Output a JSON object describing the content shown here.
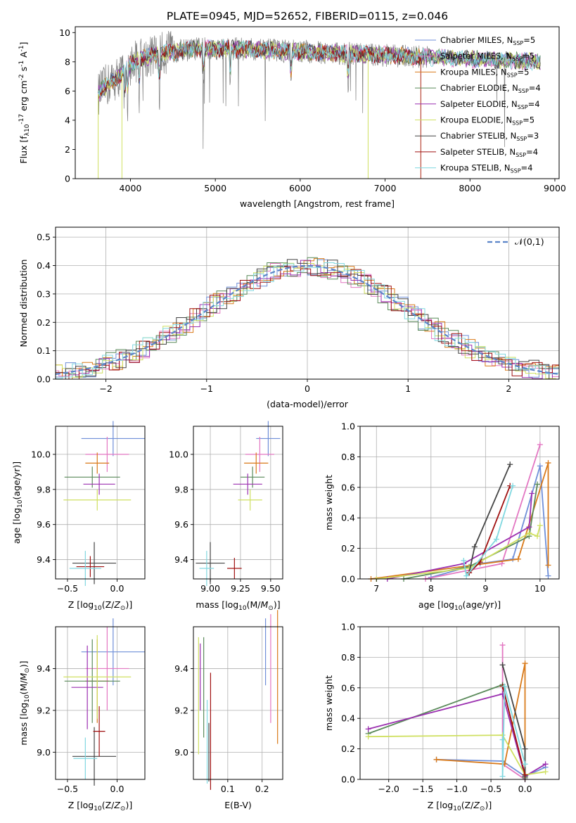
{
  "figure": {
    "title": "PLATE=0945, MJD=52652, FIBERID=0115, z=0.046",
    "colors": {
      "chabrier_miles": "#6f8fd8",
      "salpeter_miles": "#e377c2",
      "kroupa_miles": "#d97a1a",
      "chabrier_elodie": "#5a8a5a",
      "salpeter_elodie": "#9b30b0",
      "kroupa_elodie": "#cfe060",
      "chabrier_stelib": "#444444",
      "salpeter_stelib": "#a01010",
      "kroupa_stelib": "#80d8e0",
      "data": "#808080",
      "normal": "#5b84c8"
    }
  },
  "chart_data": [
    {
      "id": "spectrum",
      "type": "line",
      "xlabel": "wavelength [Angstrom, rest frame]",
      "ylabel": "Flux [f_λ10^{-17} erg cm^{-2} s^{-1} A^{-1}]",
      "xlim": [
        3350,
        9050
      ],
      "ylim": [
        0,
        10.4
      ],
      "xticks": [
        "4000",
        "5000",
        "6000",
        "7000",
        "8000",
        "9000"
      ],
      "yticks": [
        "0",
        "2",
        "4",
        "6",
        "8",
        "10"
      ],
      "grid": false,
      "legend_position": "right",
      "legend": [
        "Chabrier MILES, N_SSP=5",
        "Salpeter MILES, N_SSP=5",
        "Kroupa MILES, N_SSP=5",
        "Chabrier ELODIE, N_SSP=4",
        "Salpeter ELODIE, N_SSP=4",
        "Kroupa ELODIE, N_SSP=5",
        "Chabrier STELIB, N_SSP=3",
        "Salpeter STELIB, N_SSP=4",
        "Kroupa STELIB, N_SSP=4"
      ],
      "continuum": {
        "wavelength": [
          3620,
          3700,
          3800,
          3900,
          4000,
          4100,
          4300,
          4500,
          4800,
          5200,
          5600,
          6000,
          6400,
          6800,
          7200,
          7600,
          8000,
          8400,
          8800
        ],
        "flux": [
          5.8,
          6.3,
          6.7,
          7.2,
          7.8,
          8.2,
          8.5,
          8.7,
          8.9,
          8.9,
          8.8,
          8.7,
          8.6,
          8.5,
          8.4,
          8.3,
          8.2,
          8.1,
          8.0
        ]
      }
    },
    {
      "id": "residuals",
      "type": "line",
      "xlabel": "(data-model)/error",
      "ylabel": "Normed distribution",
      "xlim": [
        -2.5,
        2.5
      ],
      "ylim": [
        0,
        0.535
      ],
      "xticks": [
        "−2",
        "−1",
        "0",
        "1",
        "2"
      ],
      "yticks": [
        "0.0",
        "0.1",
        "0.2",
        "0.3",
        "0.4",
        "0.5"
      ],
      "grid": true,
      "legend_position": "top-right",
      "normal_label": "𝒩(0,1)"
    },
    {
      "id": "age_vs_z",
      "type": "scatter",
      "xlabel": "Z [log10(Z/Z⊙)]",
      "ylabel": "age  [log10(age/yr)]",
      "xlim": [
        -0.62,
        0.28
      ],
      "ylim": [
        9.29,
        10.16
      ],
      "xticks": [
        "−0.5",
        "0.0"
      ],
      "yticks": [
        "9.4",
        "9.6",
        "9.8",
        "10.0"
      ],
      "grid": true,
      "points": [
        {
          "x": -0.04,
          "y": 10.09,
          "xerr": 0.32,
          "yerr": 0.05
        },
        {
          "x": -0.1,
          "y": 10.0,
          "xerr": 0.22,
          "yerr": 0.05
        },
        {
          "x": -0.2,
          "y": 9.95,
          "xerr": 0.12,
          "yerr": 0.03
        },
        {
          "x": -0.25,
          "y": 9.87,
          "xerr": 0.28,
          "yerr": 0.03
        },
        {
          "x": -0.18,
          "y": 9.83,
          "xerr": 0.16,
          "yerr": 0.03
        },
        {
          "x": -0.2,
          "y": 9.74,
          "xerr": 0.34,
          "yerr": 0.03
        },
        {
          "x": -0.23,
          "y": 9.38,
          "xerr": 0.22,
          "yerr": 0.06
        },
        {
          "x": -0.27,
          "y": 9.36,
          "xerr": 0.14,
          "yerr": 0.03
        },
        {
          "x": -0.32,
          "y": 9.35,
          "xerr": 0.16,
          "yerr": 0.05
        }
      ]
    },
    {
      "id": "age_vs_mass",
      "type": "scatter",
      "xlabel": "mass [log10(M/M⊙)]",
      "ylabel": "",
      "xlim": [
        8.86,
        9.6
      ],
      "ylim": [
        9.29,
        10.16
      ],
      "xticks": [
        "9.00",
        "9.25",
        "9.50"
      ],
      "yticks": [
        "9.4",
        "9.6",
        "9.8",
        "10.0"
      ],
      "grid": true,
      "points": [
        {
          "x": 9.48,
          "y": 10.09,
          "xerr": 0.1,
          "yerr": 0.05
        },
        {
          "x": 9.41,
          "y": 10.0,
          "xerr": 0.12,
          "yerr": 0.05
        },
        {
          "x": 9.38,
          "y": 9.95,
          "xerr": 0.1,
          "yerr": 0.03
        },
        {
          "x": 9.35,
          "y": 9.87,
          "xerr": 0.1,
          "yerr": 0.03
        },
        {
          "x": 9.31,
          "y": 9.83,
          "xerr": 0.12,
          "yerr": 0.03
        },
        {
          "x": 9.33,
          "y": 9.74,
          "xerr": 0.1,
          "yerr": 0.03
        },
        {
          "x": 9.0,
          "y": 9.38,
          "xerr": 0.12,
          "yerr": 0.06
        },
        {
          "x": 9.2,
          "y": 9.35,
          "xerr": 0.06,
          "yerr": 0.03
        },
        {
          "x": 8.97,
          "y": 9.35,
          "xerr": 0.06,
          "yerr": 0.05
        }
      ]
    },
    {
      "id": "weight_vs_age",
      "type": "line",
      "xlabel": "age  [log10(age/yr)]",
      "ylabel": "mass weight",
      "xlim": [
        6.7,
        10.35
      ],
      "ylim": [
        0,
        1
      ],
      "xticks": [
        "7",
        "8",
        "9",
        "10"
      ],
      "yticks": [
        "0.0",
        "0.2",
        "0.4",
        "0.6",
        "0.8",
        "1.0"
      ],
      "grid": true,
      "series": [
        {
          "color": "chabrier_miles",
          "x": [
            8.0,
            8.9,
            9.5,
            10.0,
            10.15
          ],
          "y": [
            0.01,
            0.1,
            0.13,
            0.74,
            0.02
          ]
        },
        {
          "color": "salpeter_miles",
          "x": [
            7.9,
            9.3,
            10.0
          ],
          "y": [
            0.0,
            0.1,
            0.88
          ]
        },
        {
          "color": "kroupa_miles",
          "x": [
            6.9,
            9.6,
            10.15,
            10.15
          ],
          "y": [
            0.0,
            0.13,
            0.76,
            0.09
          ]
        },
        {
          "color": "chabrier_elodie",
          "x": [
            7.5,
            8.7,
            9.8,
            9.95
          ],
          "y": [
            0.0,
            0.08,
            0.28,
            0.62
          ]
        },
        {
          "color": "salpeter_elodie",
          "x": [
            7.2,
            8.6,
            9.8,
            9.85
          ],
          "y": [
            0.0,
            0.1,
            0.34,
            0.56
          ]
        },
        {
          "color": "kroupa_elodie",
          "x": [
            7.0,
            8.7,
            9.8,
            9.95,
            10.0
          ],
          "y": [
            0.0,
            0.07,
            0.3,
            0.28,
            0.35
          ]
        },
        {
          "color": "chabrier_stelib",
          "x": [
            8.7,
            8.8,
            9.45
          ],
          "y": [
            0.04,
            0.21,
            0.75
          ]
        },
        {
          "color": "salpeter_stelib",
          "x": [
            8.7,
            8.9,
            9.45
          ],
          "y": [
            0.04,
            0.11,
            0.61
          ]
        },
        {
          "color": "kroupa_stelib",
          "x": [
            8.6,
            8.65,
            9.2,
            9.5
          ],
          "y": [
            0.12,
            0.02,
            0.26,
            0.61
          ]
        }
      ]
    },
    {
      "id": "mass_vs_z",
      "type": "scatter",
      "xlabel": "Z [log10(Z/Z⊙)]",
      "ylabel": "mass [log10(M/M⊙)]",
      "xlim": [
        -0.62,
        0.28
      ],
      "ylim": [
        8.87,
        9.6
      ],
      "xticks": [
        "−0.5",
        "0.0"
      ],
      "yticks": [
        "9.0",
        "9.2",
        "9.4"
      ],
      "grid": true,
      "points": [
        {
          "x": -0.04,
          "y": 9.48,
          "xerr": 0.32,
          "yerr": 0.08
        },
        {
          "x": -0.1,
          "y": 9.4,
          "xerr": 0.22,
          "yerr": 0.1
        },
        {
          "x": -0.2,
          "y": 9.34,
          "xerr": 0.12,
          "yerr": 0.1
        },
        {
          "x": -0.25,
          "y": 9.34,
          "xerr": 0.28,
          "yerr": 0.1
        },
        {
          "x": -0.3,
          "y": 9.31,
          "xerr": 0.16,
          "yerr": 0.1
        },
        {
          "x": -0.2,
          "y": 9.36,
          "xerr": 0.34,
          "yerr": 0.1
        },
        {
          "x": -0.23,
          "y": 8.98,
          "xerr": 0.22,
          "yerr": 0.07
        },
        {
          "x": -0.18,
          "y": 9.1,
          "xerr": 0.06,
          "yerr": 0.06
        },
        {
          "x": -0.32,
          "y": 8.97,
          "xerr": 0.12,
          "yerr": 0.05
        }
      ]
    },
    {
      "id": "mass_vs_ebv",
      "type": "scatter",
      "xlabel": "E(B-V)",
      "ylabel": "",
      "xlim": [
        0.0,
        0.26
      ],
      "ylim": [
        8.87,
        9.6
      ],
      "xticks": [
        "0.1",
        "0.2"
      ],
      "yticks": [
        "9.0",
        "9.2",
        "9.4"
      ],
      "grid": true,
      "points": [
        {
          "x": 0.21,
          "y": 9.48,
          "xerr": 0,
          "yerr": 0.08
        },
        {
          "x": 0.225,
          "y": 9.4,
          "xerr": 0,
          "yerr": 0.13
        },
        {
          "x": 0.245,
          "y": 9.36,
          "xerr": 0,
          "yerr": 0.16
        },
        {
          "x": 0.03,
          "y": 9.31,
          "xerr": 0,
          "yerr": 0.12
        },
        {
          "x": 0.02,
          "y": 9.36,
          "xerr": 0,
          "yerr": 0.08
        },
        {
          "x": 0.015,
          "y": 9.27,
          "xerr": 0,
          "yerr": 0.14
        },
        {
          "x": 0.045,
          "y": 9.0,
          "xerr": 0,
          "yerr": 0.07
        },
        {
          "x": 0.05,
          "y": 9.1,
          "xerr": 0,
          "yerr": 0.14
        },
        {
          "x": 0.04,
          "y": 9.05,
          "xerr": 0,
          "yerr": 0.1
        }
      ]
    },
    {
      "id": "weight_vs_z",
      "type": "line",
      "xlabel": "Z [log10(Z/Z⊙)]",
      "ylabel": "mass weight",
      "xlim": [
        -2.42,
        0.5
      ],
      "ylim": [
        0,
        1
      ],
      "xticks": [
        "−2.0",
        "−1.5",
        "−1.0",
        "−0.5",
        "0.0"
      ],
      "yticks": [
        "0.0",
        "0.2",
        "0.4",
        "0.6",
        "0.8",
        "1.0"
      ],
      "grid": true,
      "series": [
        {
          "color": "chabrier_miles",
          "x": [
            -1.3,
            -0.33,
            0.0,
            0.3
          ],
          "y": [
            0.13,
            0.12,
            0.02,
            0.08
          ]
        },
        {
          "color": "salpeter_miles",
          "x": [
            -0.33,
            -0.33,
            0.0
          ],
          "y": [
            0.88,
            0.1,
            0.0
          ]
        },
        {
          "color": "kroupa_miles",
          "x": [
            -1.3,
            -0.3,
            0.0,
            0.0
          ],
          "y": [
            0.13,
            0.1,
            0.76,
            0.01
          ]
        },
        {
          "color": "chabrier_elodie",
          "x": [
            -2.3,
            -0.33,
            0.0
          ],
          "y": [
            0.3,
            0.62,
            0.01
          ]
        },
        {
          "color": "salpeter_elodie",
          "x": [
            -2.3,
            -0.33,
            0.0,
            0.3
          ],
          "y": [
            0.33,
            0.56,
            0.02,
            0.1
          ]
        },
        {
          "color": "kroupa_elodie",
          "x": [
            -2.3,
            -0.33,
            0.0,
            0.3
          ],
          "y": [
            0.28,
            0.29,
            0.03,
            0.05
          ]
        },
        {
          "color": "chabrier_stelib",
          "x": [
            -0.33,
            0.0,
            0.0
          ],
          "y": [
            0.75,
            0.2,
            0.02
          ]
        },
        {
          "color": "salpeter_stelib",
          "x": [
            -0.33,
            0.0
          ],
          "y": [
            0.61,
            0.03
          ]
        },
        {
          "color": "kroupa_stelib",
          "x": [
            -0.33,
            -0.33,
            -0.3,
            0.0
          ],
          "y": [
            0.26,
            0.02,
            0.61,
            0.1
          ]
        }
      ]
    }
  ]
}
